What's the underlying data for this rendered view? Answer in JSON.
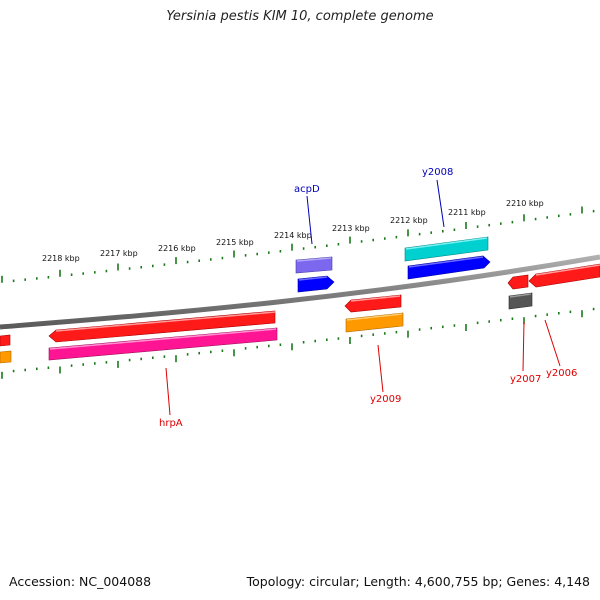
{
  "title": "Yersinia pestis KIM 10, complete genome",
  "accession": "Accession: NC_004088",
  "summary": "Topology: circular; Length: 4,600,755 bp; Genes: 4,148",
  "colors": {
    "backbone": "#808080",
    "ticks": "#1a7a1a",
    "tick_labels": "#111111",
    "gene_label_red": "#dd0000",
    "gene_label_blue": "#0000bb"
  },
  "scale_labels": [
    "2218 kbp",
    "2217 kbp",
    "2216 kbp",
    "2215 kbp",
    "2214 kbp",
    "2213 kbp",
    "2212 kbp",
    "2211 kbp",
    "2210 kbp"
  ],
  "gene_labels": [
    "acpD",
    "y2008",
    "hrpA",
    "y2009",
    "y2007",
    "y2006"
  ],
  "features": [
    {
      "name": "red-gene-left",
      "color": "#ff1a1a",
      "shade": "#aa0000",
      "strand": "rev"
    },
    {
      "name": "orange-gene-left",
      "color": "#ff9900",
      "shade": "#b36b00",
      "strand": "none"
    },
    {
      "name": "red-gene-hrpA-upper",
      "color": "#ff1a1a",
      "shade": "#aa0000",
      "strand": "rev"
    },
    {
      "name": "hrpA-gene",
      "color": "#ff1493",
      "shade": "#a30d5e",
      "strand": "none"
    },
    {
      "name": "acpD-gene",
      "color": "#7b68ee",
      "shade": "#4b3ea8",
      "strand": "none"
    },
    {
      "name": "blue-gene-acpD",
      "color": "#0000ff",
      "shade": "#0000a0",
      "strand": "fwd"
    },
    {
      "name": "red-gene-y2009",
      "color": "#ff1a1a",
      "shade": "#aa0000",
      "strand": "rev"
    },
    {
      "name": "y2009-gene",
      "color": "#ff9900",
      "shade": "#b36b00",
      "strand": "none"
    },
    {
      "name": "y2008-gene",
      "color": "#00d0d0",
      "shade": "#008a8a",
      "strand": "none"
    },
    {
      "name": "blue-gene-y2008",
      "color": "#0000ff",
      "shade": "#0000a0",
      "strand": "fwd"
    },
    {
      "name": "y2007-gene",
      "color": "#ff1a1a",
      "shade": "#aa0000",
      "strand": "rev"
    },
    {
      "name": "gray-gene-y2007",
      "color": "#555555",
      "shade": "#2a2a2a",
      "strand": "none"
    },
    {
      "name": "y2006-gene",
      "color": "#ff1a1a",
      "shade": "#aa0000",
      "strand": "rev"
    }
  ]
}
